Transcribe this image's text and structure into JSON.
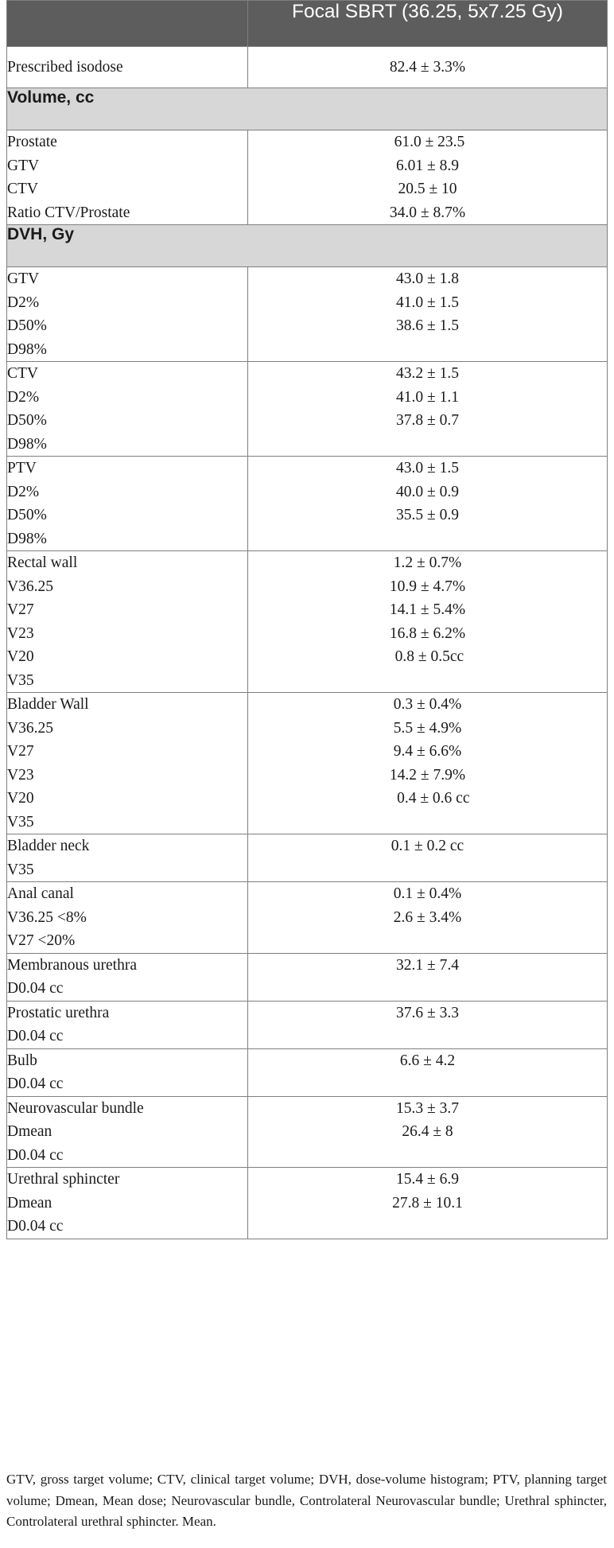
{
  "table": {
    "header": {
      "col1": "",
      "col2": "Focal SBRT (36.25, 5x7.25 Gy)"
    },
    "rows": [
      {
        "type": "row",
        "single": true,
        "labels": [
          "Prescribed isodose"
        ],
        "values": [
          "82.4 ± 3.3%"
        ]
      },
      {
        "type": "section",
        "title": "Volume, cc"
      },
      {
        "type": "row",
        "labels": [
          "Prostate",
          "GTV",
          "CTV",
          "Ratio CTV/Prostate"
        ],
        "values": [
          " 61.0 ± 23.5",
          "6.01 ± 8.9",
          "20.5 ± 10",
          "34.0 ± 8.7%"
        ]
      },
      {
        "type": "section",
        "title": "DVH, Gy"
      },
      {
        "type": "row",
        "labels": [
          "GTV",
          "D2%",
          "D50%",
          "D98%"
        ],
        "values": [
          "43.0 ± 1.8",
          "41.0 ± 1.5",
          "38.6 ± 1.5"
        ]
      },
      {
        "type": "row",
        "labels": [
          "CTV",
          "D2%",
          "D50%",
          "D98%"
        ],
        "values": [
          "43.2 ± 1.5",
          "41.0 ± 1.1",
          "37.8 ± 0.7"
        ]
      },
      {
        "type": "row",
        "labels": [
          "PTV",
          "D2%",
          "D50%",
          "D98%"
        ],
        "values": [
          "43.0 ± 1.5",
          "40.0 ± 0.9",
          "35.5 ± 0.9"
        ]
      },
      {
        "type": "row",
        "labels": [
          "Rectal wall",
          "V36.25",
          "V27",
          "V23",
          "V20",
          "V35"
        ],
        "values": [
          "1.2 ± 0.7%",
          "10.9 ± 4.7%",
          "14.1 ± 5.4%",
          "16.8 ± 6.2%",
          " 0.8 ± 0.5cc"
        ]
      },
      {
        "type": "row",
        "labels": [
          "Bladder Wall",
          "V36.25",
          "V27",
          "V23",
          "V20",
          "V35"
        ],
        "values": [
          "0.3 ± 0.4%",
          "5.5 ± 4.9%",
          "9.4 ± 6.6%",
          "14.2 ± 7.9%",
          "   0.4 ± 0.6 cc"
        ]
      },
      {
        "type": "row",
        "labels": [
          "Bladder neck",
          "V35"
        ],
        "values": [
          "0.1 ± 0.2 cc"
        ]
      },
      {
        "type": "row",
        "labels": [
          "Anal canal",
          "V36.25 <8%",
          "V27 <20%"
        ],
        "values": [
          "0.1 ± 0.4%",
          "2.6 ± 3.4%"
        ]
      },
      {
        "type": "row",
        "labels": [
          "Membranous urethra",
          "D0.04 cc"
        ],
        "values": [
          "32.1 ± 7.4"
        ]
      },
      {
        "type": "row",
        "labels": [
          "Prostatic urethra",
          "D0.04 cc"
        ],
        "values": [
          "37.6 ± 3.3"
        ]
      },
      {
        "type": "row",
        "labels": [
          "Bulb",
          "D0.04 cc"
        ],
        "values": [
          "6.6 ± 4.2"
        ]
      },
      {
        "type": "row",
        "labels": [
          "Neurovascular bundle",
          "Dmean",
          "D0.04 cc"
        ],
        "values": [
          "15.3 ± 3.7",
          "26.4 ± 8"
        ]
      },
      {
        "type": "row",
        "labels": [
          "Urethral sphincter",
          "Dmean",
          "D0.04 cc"
        ],
        "values": [
          "15.4 ± 6.9",
          "27.8 ± 10.1"
        ]
      }
    ]
  },
  "footnote": "GTV, gross target volume; CTV, clinical target volume; DVH, dose-volume histogram; PTV, planning target volume; Dmean, Mean dose; Neurovascular bundle, Controlateral Neurovascular bundle; Urethral sphincter, Controlateral urethral sphincter. Mean."
}
